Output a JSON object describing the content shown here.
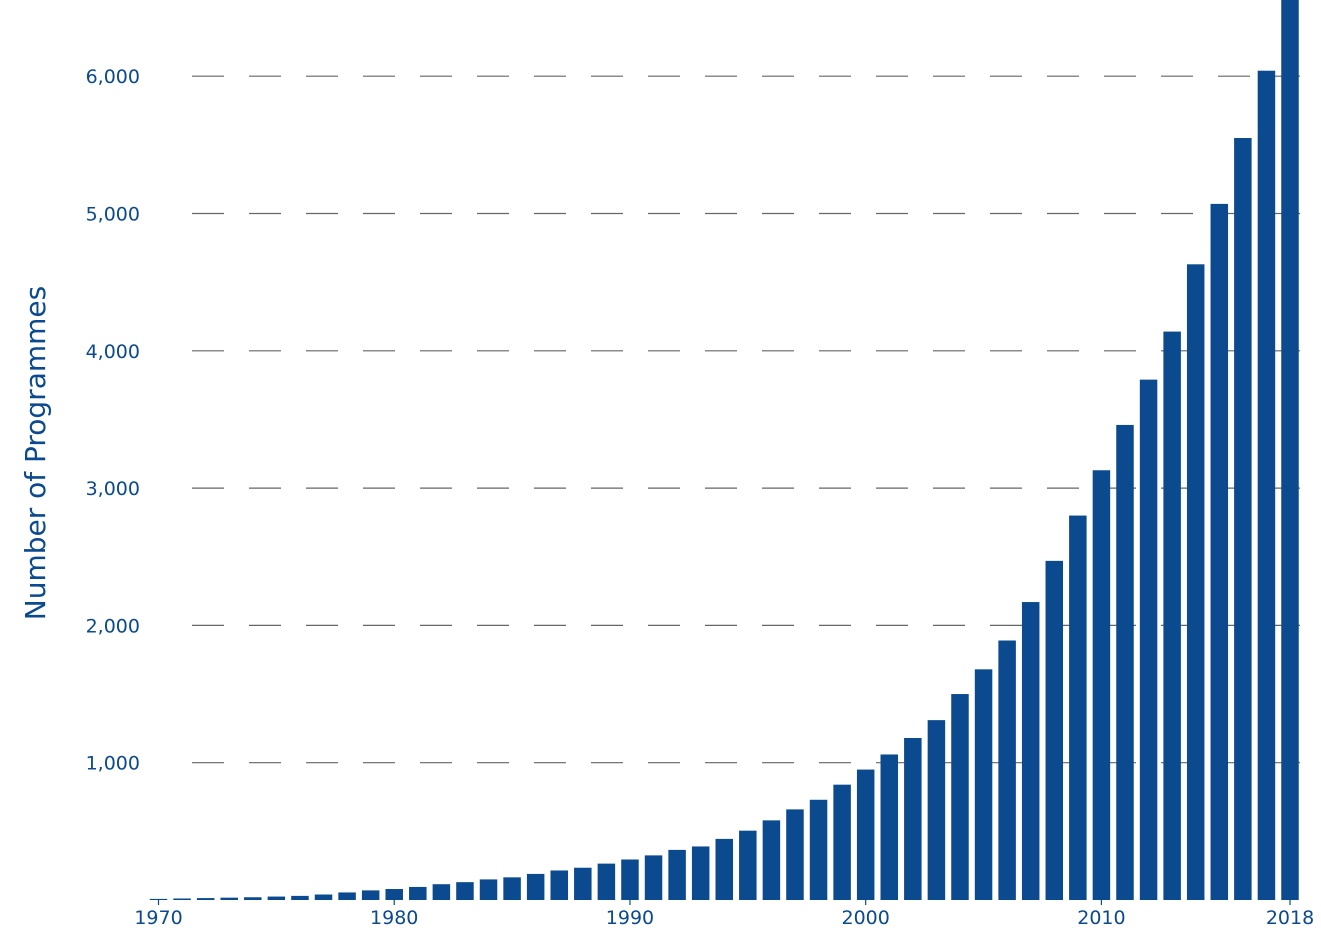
{
  "chart_data": {
    "type": "bar",
    "ylabel": "Number of Programmes",
    "xlabel": "",
    "x_tick_labels": [
      "1970",
      "1980",
      "1990",
      "2000",
      "2010",
      "2018"
    ],
    "y_tick_labels": [
      "1,000",
      "2,000",
      "3,000",
      "4,000",
      "5,000",
      "6,000"
    ],
    "y_tick_values": [
      1000,
      2000,
      3000,
      4000,
      5000,
      6000
    ],
    "grid": true,
    "grid_style": "dashed horizontal",
    "bar_color": "#0b4a8f",
    "ylim": [
      0,
      6600
    ],
    "categories": [
      1970,
      1971,
      1972,
      1973,
      1974,
      1975,
      1976,
      1977,
      1978,
      1979,
      1980,
      1981,
      1982,
      1983,
      1984,
      1985,
      1986,
      1987,
      1988,
      1989,
      1990,
      1991,
      1992,
      1993,
      1994,
      1995,
      1996,
      1997,
      1998,
      1999,
      2000,
      2001,
      2002,
      2003,
      2004,
      2005,
      2006,
      2007,
      2008,
      2009,
      2010,
      2011,
      2012,
      2013,
      2014,
      2015,
      2016,
      2017,
      2018
    ],
    "values": [
      8,
      11,
      14,
      17,
      20,
      25,
      30,
      40,
      55,
      70,
      80,
      95,
      115,
      130,
      150,
      165,
      190,
      215,
      235,
      265,
      295,
      325,
      365,
      390,
      445,
      505,
      580,
      660,
      730,
      840,
      950,
      1060,
      1180,
      1310,
      1500,
      1680,
      1890,
      2170,
      2470,
      2800,
      3130,
      3460,
      3790,
      4140,
      4630,
      5070,
      5550,
      6040,
      6630
    ]
  }
}
